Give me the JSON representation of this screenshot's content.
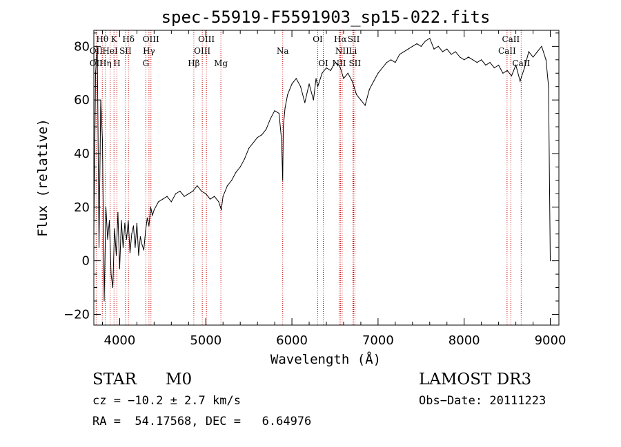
{
  "chart_data": {
    "type": "line",
    "title": "spec-55919-F5591903_sp15-022.fits",
    "xlabel": "Wavelength (Å)",
    "ylabel": "Flux (relative)",
    "xlim": [
      3700,
      9100
    ],
    "ylim": [
      -24,
      86
    ],
    "xticks": [
      4000,
      5000,
      6000,
      7000,
      8000,
      9000
    ],
    "yticks": [
      -20,
      0,
      20,
      40,
      60,
      80
    ],
    "line_color": "#000000",
    "marker_color": "#cc0000",
    "series": [
      {
        "x": [
          3700,
          3720,
          3740,
          3760,
          3780,
          3800,
          3820,
          3840,
          3860,
          3880,
          3900,
          3920,
          3940,
          3960,
          3980,
          4000,
          4020,
          4040,
          4060,
          4080,
          4100,
          4120,
          4140,
          4160,
          4180,
          4200,
          4220,
          4240,
          4260,
          4280,
          4300,
          4320,
          4340,
          4360,
          4380,
          4400,
          4450,
          4500,
          4550,
          4600,
          4650,
          4700,
          4750,
          4800,
          4850,
          4900,
          4950,
          5000,
          5050,
          5100,
          5150,
          5180,
          5200,
          5250,
          5300,
          5350,
          5400,
          5450,
          5500,
          5550,
          5600,
          5650,
          5700,
          5750,
          5800,
          5850,
          5880,
          5893,
          5900,
          5920,
          5950,
          6000,
          6050,
          6100,
          6150,
          6200,
          6250,
          6280,
          6300,
          6350,
          6400,
          6450,
          6500,
          6550,
          6563,
          6600,
          6650,
          6700,
          6750,
          6800,
          6850,
          6900,
          6950,
          7000,
          7050,
          7100,
          7150,
          7200,
          7250,
          7300,
          7350,
          7400,
          7450,
          7500,
          7550,
          7600,
          7650,
          7700,
          7750,
          7800,
          7850,
          7900,
          7950,
          8000,
          8050,
          8100,
          8150,
          8200,
          8250,
          8300,
          8350,
          8400,
          8450,
          8500,
          8550,
          8600,
          8650,
          8700,
          8750,
          8800,
          8850,
          8900,
          8950,
          8980,
          9000
        ],
        "y": [
          10,
          70,
          80,
          5,
          60,
          45,
          -15,
          20,
          8,
          15,
          -5,
          -10,
          12,
          2,
          18,
          -3,
          15,
          5,
          14,
          8,
          15,
          3,
          10,
          13,
          5,
          14,
          2,
          9,
          6,
          4,
          11,
          16,
          13,
          20,
          17,
          19,
          22,
          23,
          24,
          22,
          25,
          26,
          24,
          25,
          26,
          28,
          26,
          25,
          23,
          24,
          22,
          19,
          24,
          28,
          30,
          33,
          35,
          38,
          42,
          44,
          46,
          47,
          49,
          53,
          56,
          55,
          45,
          30,
          50,
          57,
          62,
          66,
          68,
          65,
          59,
          66,
          60,
          68,
          65,
          70,
          72,
          71,
          74,
          73,
          72,
          68,
          70,
          67,
          62,
          60,
          58,
          64,
          67,
          70,
          72,
          74,
          75,
          74,
          77,
          78,
          79,
          80,
          81,
          80,
          82,
          83,
          79,
          80,
          78,
          79,
          77,
          78,
          76,
          75,
          76,
          75,
          74,
          75,
          73,
          74,
          72,
          73,
          70,
          71,
          69,
          73,
          67,
          72,
          78,
          76,
          78,
          80,
          75,
          65,
          0
        ]
      }
    ],
    "spectral_lines": [
      {
        "label": "Hθ",
        "x": 3798,
        "row": 1
      },
      {
        "label": "OII",
        "x": 3727,
        "row": 2
      },
      {
        "label": "HeI",
        "x": 3889,
        "row": 2
      },
      {
        "label": "OII",
        "x": 3727,
        "row": 3
      },
      {
        "label": "Hη",
        "x": 3835,
        "row": 3
      },
      {
        "label": "H",
        "x": 3968,
        "row": 3
      },
      {
        "label": "K",
        "x": 3934,
        "row": 1
      },
      {
        "label": "SII",
        "x": 4068,
        "row": 2
      },
      {
        "label": "Hδ",
        "x": 4102,
        "row": 1
      },
      {
        "label": "OIII",
        "x": 4363,
        "row": 1
      },
      {
        "label": "Hγ",
        "x": 4340,
        "row": 2
      },
      {
        "label": "G",
        "x": 4304,
        "row": 3
      },
      {
        "label": "Hβ",
        "x": 4861,
        "row": 3
      },
      {
        "label": "OIII",
        "x": 5007,
        "row": 1
      },
      {
        "label": "OIII",
        "x": 4959,
        "row": 2
      },
      {
        "label": "Mg",
        "x": 5175,
        "row": 3
      },
      {
        "label": "Na",
        "x": 5893,
        "row": 2
      },
      {
        "label": "OI",
        "x": 6300,
        "row": 1
      },
      {
        "label": "OI",
        "x": 6364,
        "row": 3
      },
      {
        "label": "Hα",
        "x": 6563,
        "row": 1
      },
      {
        "label": "SII",
        "x": 6717,
        "row": 1
      },
      {
        "label": "NII",
        "x": 6583,
        "row": 2
      },
      {
        "label": "Li",
        "x": 6708,
        "row": 2
      },
      {
        "label": "NII",
        "x": 6548,
        "row": 3
      },
      {
        "label": "SII",
        "x": 6731,
        "row": 3
      },
      {
        "label": "CaII",
        "x": 8542,
        "row": 1
      },
      {
        "label": "CaII",
        "x": 8498,
        "row": 2
      },
      {
        "label": "CaII",
        "x": 8662,
        "row": 3
      }
    ],
    "marker_lines_x": [
      3727,
      3798,
      3835,
      3889,
      3934,
      3968,
      4068,
      4102,
      4304,
      4340,
      4363,
      4861,
      4959,
      5007,
      5175,
      5893,
      6300,
      6364,
      6548,
      6563,
      6583,
      6708,
      6717,
      6731,
      8498,
      8542,
      8662
    ]
  },
  "info": {
    "object_class": "STAR",
    "subclass": "M0",
    "survey": "LAMOST DR3",
    "redshift": "cz = −10.2 ± 2.7 km/s",
    "obs_date": "Obs−Date: 20111223",
    "coords": "RA =  54.17568, DEC =   6.64976"
  }
}
